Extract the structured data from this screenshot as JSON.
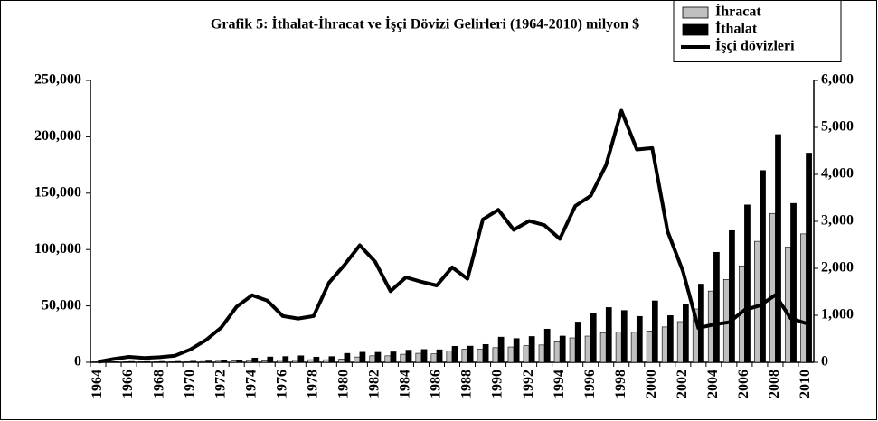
{
  "chart_data": {
    "type": "bar",
    "title": "Grafik 5: İthalat-İhracat ve İşçi Dövizi Gelirleri (1964-2010) milyon $",
    "categories": [
      "1964",
      null,
      "1966",
      null,
      "1968",
      null,
      "1970",
      null,
      "1972",
      null,
      "1974",
      null,
      "1976",
      null,
      "1978",
      null,
      "1980",
      null,
      "1982",
      null,
      "1984",
      null,
      "1986",
      null,
      "1988",
      null,
      "1990",
      null,
      "1992",
      null,
      "1994",
      null,
      "1996",
      null,
      "1998",
      null,
      "2000",
      null,
      "2002",
      null,
      "2004",
      null,
      "2006",
      null,
      "2008",
      null,
      "2010"
    ],
    "series": [
      {
        "name": "İhracat",
        "color": "#c0c0c0",
        "values": [
          411,
          464,
          490,
          523,
          496,
          537,
          588,
          677,
          885,
          1317,
          1532,
          1401,
          1960,
          1753,
          2288,
          2261,
          2910,
          4703,
          5746,
          5728,
          7134,
          7958,
          7457,
          10190,
          11662,
          11625,
          12959,
          13593,
          14715,
          15345,
          18106,
          21637,
          23225,
          26261,
          26974,
          26587,
          27775,
          31334,
          36059,
          47253,
          63167,
          73476,
          85535,
          107272,
          132027,
          102143,
          113883
        ]
      },
      {
        "name": "İthalat",
        "color": "#000000",
        "values": [
          537,
          572,
          718,
          685,
          764,
          801,
          948,
          1171,
          1563,
          2086,
          3778,
          4739,
          5129,
          5796,
          4599,
          5069,
          7909,
          8933,
          8843,
          9235,
          10757,
          11343,
          11105,
          14158,
          14335,
          15792,
          22302,
          21047,
          22871,
          29428,
          23270,
          35709,
          43627,
          48559,
          45921,
          40671,
          54503,
          41399,
          51554,
          69340,
          97540,
          116774,
          139576,
          170063,
          201964,
          140928,
          185544
        ]
      },
      {
        "name": "İşçi dövizleri",
        "color": "#000000",
        "type": "line",
        "axis": "y2",
        "values": [
          9,
          70,
          115,
          93,
          107,
          141,
          273,
          471,
          740,
          1183,
          1426,
          1312,
          982,
          930,
          983,
          1694,
          2071,
          2490,
          2140,
          1513,
          1807,
          1714,
          1634,
          2021,
          1776,
          3040,
          3246,
          2819,
          3008,
          2919,
          2627,
          3327,
          3542,
          4197,
          5356,
          4529,
          4560,
          2786,
          1936,
          729,
          804,
          851,
          1111,
          1209,
          1431,
          934,
          829
        ]
      }
    ],
    "ylim": [
      0,
      250000
    ],
    "yticks": [
      0,
      {
        "value": 50000,
        "label": "50,000"
      },
      {
        "value": 100000,
        "label": "100,000"
      },
      {
        "value": 150000,
        "label": "150,000"
      },
      {
        "value": 200000,
        "label": "200,000"
      },
      {
        "value": 250000,
        "label": "250,000"
      }
    ],
    "y2lim": [
      0,
      6000
    ],
    "y2ticks": [
      0,
      {
        "value": 1000,
        "label": "1,000"
      },
      {
        "value": 2000,
        "label": "2,000"
      },
      {
        "value": 3000,
        "label": "3,000"
      },
      {
        "value": 4000,
        "label": "4,000"
      },
      {
        "value": 5000,
        "label": "5,000"
      },
      {
        "value": 6000,
        "label": "6,000"
      }
    ],
    "legend": "top-right"
  }
}
